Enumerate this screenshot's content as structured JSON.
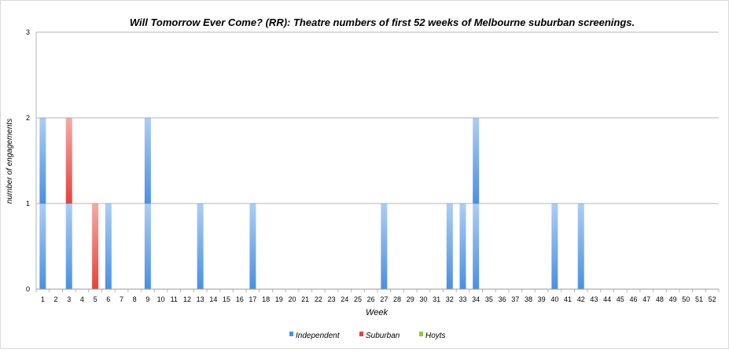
{
  "chart_data": {
    "type": "bar",
    "stacked": true,
    "title": "Will Tomorrow Ever Come? (RR): Theatre numbers of first 52 weeks of Melbourne suburban screenings.",
    "xlabel": "Week",
    "ylabel": "number of engagements",
    "ylim": [
      0,
      3
    ],
    "yticks": [
      "0",
      "1",
      "2",
      "3"
    ],
    "grid": true,
    "legend_position": "bottom",
    "categories": [
      "1",
      "2",
      "3",
      "4",
      "5",
      "6",
      "7",
      "8",
      "9",
      "10",
      "11",
      "12",
      "13",
      "14",
      "15",
      "16",
      "17",
      "18",
      "19",
      "20",
      "21",
      "22",
      "23",
      "24",
      "25",
      "26",
      "27",
      "28",
      "29",
      "30",
      "31",
      "32",
      "33",
      "34",
      "35",
      "36",
      "37",
      "38",
      "39",
      "40",
      "41",
      "42",
      "43",
      "44",
      "45",
      "46",
      "47",
      "48",
      "49",
      "50",
      "51",
      "52"
    ],
    "series": [
      {
        "name": "Independent",
        "color": "#4a90e2",
        "values": [
          2,
          0,
          1,
          0,
          0,
          1,
          0,
          0,
          2,
          0,
          0,
          0,
          1,
          0,
          0,
          0,
          1,
          0,
          0,
          0,
          0,
          0,
          0,
          0,
          0,
          0,
          1,
          0,
          0,
          0,
          0,
          1,
          1,
          2,
          0,
          0,
          0,
          0,
          0,
          1,
          0,
          1,
          0,
          0,
          0,
          0,
          0,
          0,
          0,
          0,
          0,
          0
        ]
      },
      {
        "name": "Suburban",
        "color": "#e8423a",
        "values": [
          0,
          0,
          1,
          0,
          1,
          0,
          0,
          0,
          0,
          0,
          0,
          0,
          0,
          0,
          0,
          0,
          0,
          0,
          0,
          0,
          0,
          0,
          0,
          0,
          0,
          0,
          0,
          0,
          0,
          0,
          0,
          0,
          0,
          0,
          0,
          0,
          0,
          0,
          0,
          0,
          0,
          0,
          0,
          0,
          0,
          0,
          0,
          0,
          0,
          0,
          0,
          0
        ]
      },
      {
        "name": "Hoyts",
        "color": "#8ccc3c",
        "values": [
          0,
          0,
          0,
          0,
          0,
          0,
          0,
          0,
          0,
          0,
          0,
          0,
          0,
          0,
          0,
          0,
          0,
          0,
          0,
          0,
          0,
          0,
          0,
          0,
          0,
          0,
          0,
          0,
          0,
          0,
          0,
          0,
          0,
          0,
          0,
          0,
          0,
          0,
          0,
          0,
          0,
          0,
          0,
          0,
          0,
          0,
          0,
          0,
          0,
          0,
          0,
          0
        ]
      }
    ]
  }
}
